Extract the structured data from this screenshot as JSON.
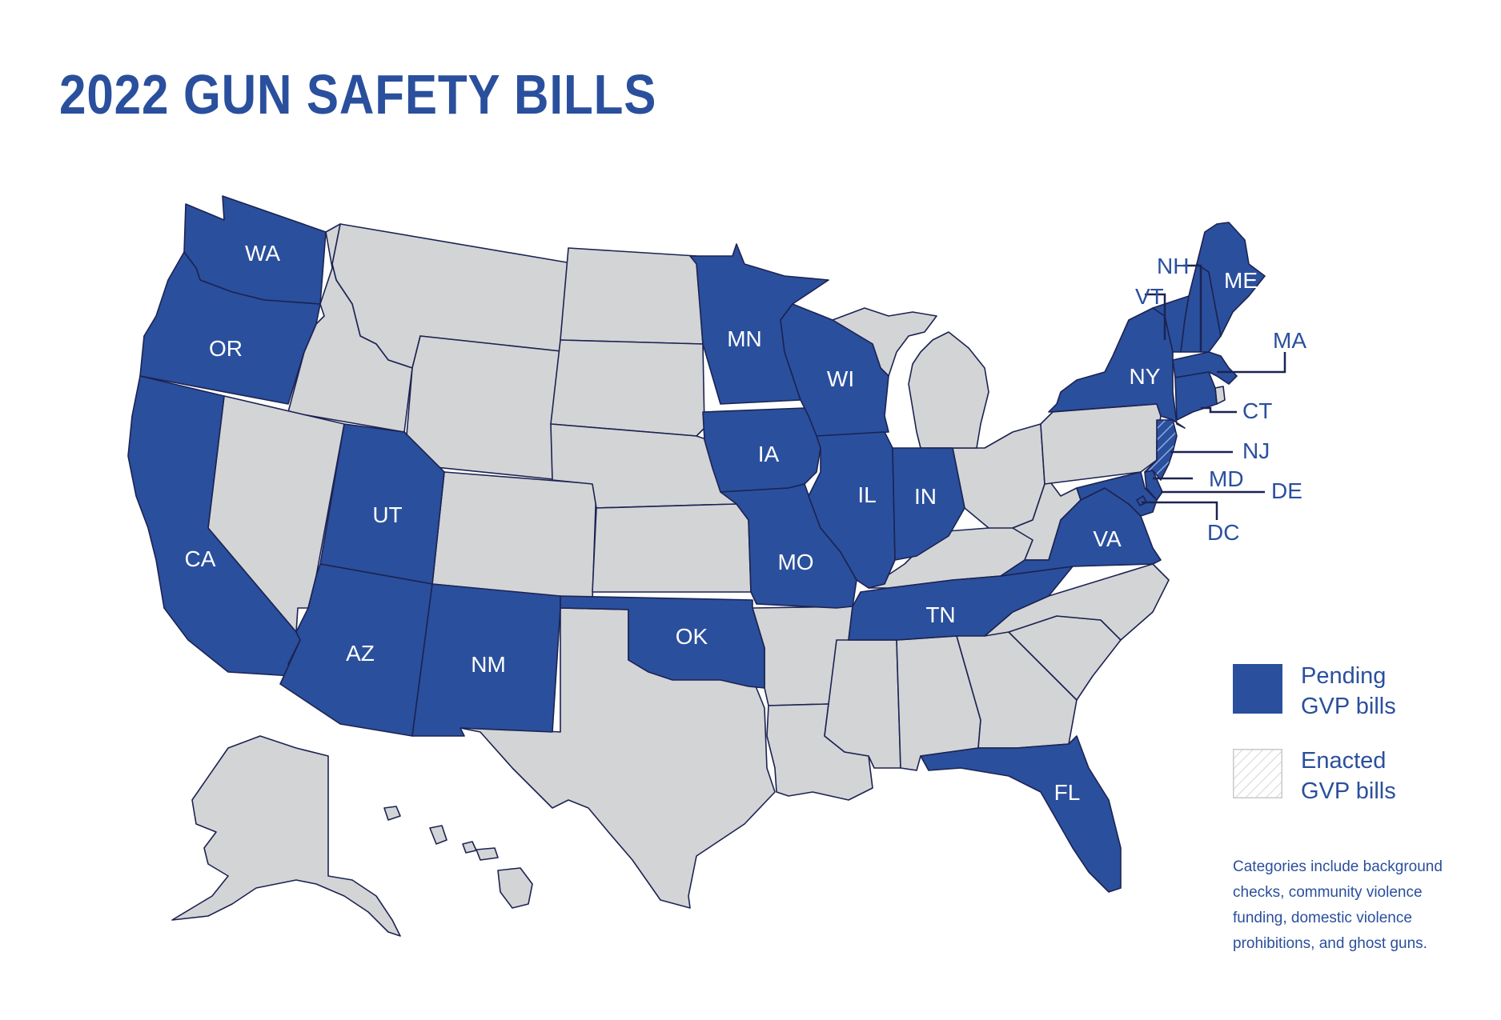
{
  "title": "2022 GUN SAFETY BILLS",
  "colors": {
    "pending": "#2a4f9d",
    "none": "#d3d4d6",
    "border": "#1c2352",
    "text": "#2a4f9d"
  },
  "legend": {
    "pending_line1": "Pending",
    "pending_line2": "GVP bills",
    "enacted_line1": "Enacted",
    "enacted_line2": "GVP bills"
  },
  "note": "Categories include background checks, community violence funding, domestic violence prohibitions, and ghost guns.",
  "states": {
    "pending_gvp_bills": [
      "WA",
      "OR",
      "CA",
      "UT",
      "AZ",
      "NM",
      "OK",
      "MN",
      "IA",
      "MO",
      "WI",
      "IL",
      "IN",
      "TN",
      "VA",
      "FL",
      "NY",
      "VT",
      "NH",
      "ME",
      "MA",
      "CT",
      "MD",
      "DE",
      "DC"
    ],
    "enacted_gvp_bills": [
      "NJ"
    ]
  },
  "labels": {
    "WA": "WA",
    "OR": "OR",
    "CA": "CA",
    "UT": "UT",
    "AZ": "AZ",
    "NM": "NM",
    "OK": "OK",
    "MN": "MN",
    "IA": "IA",
    "MO": "MO",
    "WI": "WI",
    "IL": "IL",
    "IN": "IN",
    "TN": "TN",
    "VA": "VA",
    "FL": "FL",
    "NY": "NY",
    "VT": "VT",
    "NH": "NH",
    "ME": "ME",
    "MA": "MA",
    "CT": "CT",
    "NJ": "NJ",
    "MD": "MD",
    "DE": "DE",
    "DC": "DC"
  }
}
